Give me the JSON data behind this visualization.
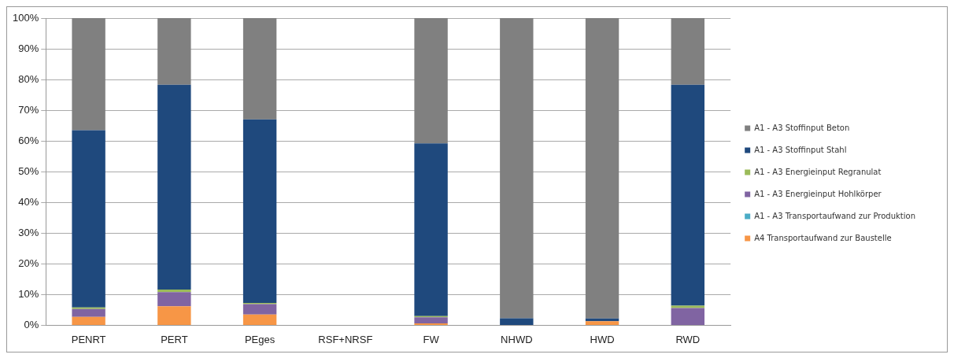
{
  "chart_data": {
    "type": "bar",
    "stacked": true,
    "categories": [
      "PENRT",
      "PERT",
      "PEges",
      "RSF+NRSF",
      "FW",
      "NHWD",
      "HWD",
      "RWD"
    ],
    "series": [
      {
        "name": "A4 Transportaufwand zur Baustelle",
        "color": "#f79646",
        "values": [
          2.7,
          6.2,
          3.5,
          0,
          0.6,
          0,
          1.3,
          0
        ]
      },
      {
        "name": "A1 - A3 Transportaufwand zur Produktion",
        "color": "#4bacc6",
        "values": [
          0,
          0,
          0,
          0,
          0,
          0,
          0,
          0
        ]
      },
      {
        "name": "A1 - A3 Energieinput Hohlkörper",
        "color": "#8064a2",
        "values": [
          2.6,
          4.6,
          3.4,
          0,
          2.0,
          0,
          0,
          5.6
        ]
      },
      {
        "name": "A1 - A3 Energieinput Regranulat",
        "color": "#9bbb59",
        "values": [
          0.5,
          0.8,
          0.4,
          0,
          0.4,
          0,
          0,
          0.8
        ]
      },
      {
        "name": "A1 - A3 Stoffinput Stahl",
        "color": "#1f497d",
        "values": [
          57.7,
          66.7,
          59.7,
          0,
          56.2,
          2.3,
          0.9,
          71.9
        ]
      },
      {
        "name": "A1 - A3 Stoffinput Beton",
        "color": "#808080",
        "values": [
          36.5,
          21.7,
          33.0,
          0,
          40.8,
          97.7,
          97.8,
          21.7
        ]
      }
    ],
    "ylim": [
      0,
      100
    ],
    "yticks": [
      {
        "value": 0,
        "label": "0%"
      },
      {
        "value": 10,
        "label": "10%"
      },
      {
        "value": 20,
        "label": "20%"
      },
      {
        "value": 30,
        "label": "30%"
      },
      {
        "value": 40,
        "label": "40%"
      },
      {
        "value": 50,
        "label": "50%"
      },
      {
        "value": 60,
        "label": "60%"
      },
      {
        "value": 70,
        "label": "70%"
      },
      {
        "value": 80,
        "label": "80%"
      },
      {
        "value": 90,
        "label": "90%"
      },
      {
        "value": 100,
        "label": "100%"
      }
    ],
    "grid": "y",
    "legend": "right"
  }
}
